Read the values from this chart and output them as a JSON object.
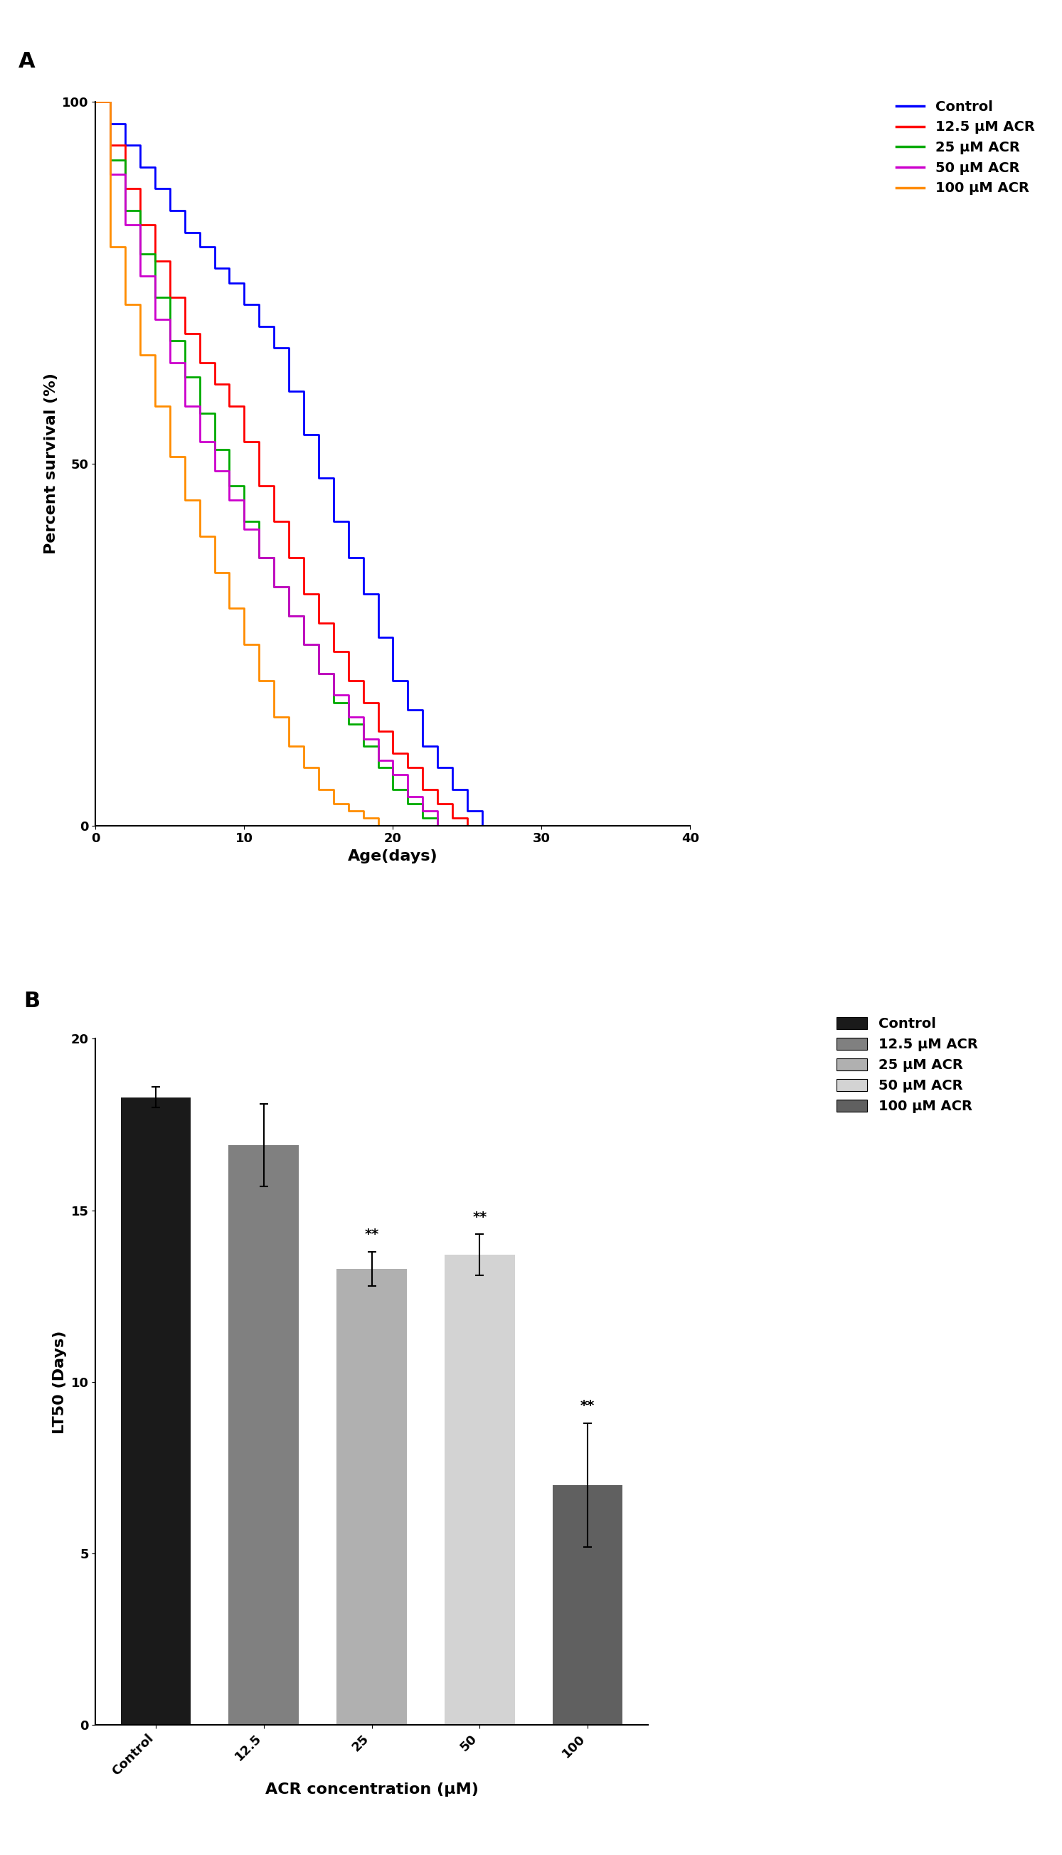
{
  "panel_a_label": "A",
  "panel_b_label": "B",
  "survival_xlabel": "Age(days)",
  "survival_ylabel": "Percent survival (%)",
  "survival_xlim": [
    0,
    40
  ],
  "survival_ylim": [
    0,
    100
  ],
  "survival_xticks": [
    0,
    10,
    20,
    30,
    40
  ],
  "survival_yticks": [
    0,
    50,
    100
  ],
  "survival_lines": [
    {
      "label": "Control",
      "color": "#0000FF",
      "x": [
        0,
        1,
        1,
        2,
        2,
        3,
        3,
        4,
        4,
        5,
        5,
        6,
        6,
        7,
        7,
        8,
        8,
        9,
        9,
        10,
        10,
        11,
        11,
        12,
        12,
        13,
        13,
        14,
        14,
        15,
        15,
        16,
        16,
        17,
        17,
        18,
        18,
        19,
        19,
        20,
        20,
        21,
        21,
        22,
        22,
        23,
        23,
        24,
        24,
        25,
        25,
        26,
        26,
        27,
        27,
        28,
        28,
        29,
        29,
        40
      ],
      "y": [
        100,
        100,
        97,
        97,
        94,
        94,
        91,
        91,
        88,
        88,
        85,
        85,
        82,
        82,
        80,
        80,
        77,
        77,
        75,
        75,
        72,
        72,
        69,
        69,
        66,
        66,
        60,
        60,
        54,
        54,
        48,
        48,
        42,
        42,
        37,
        37,
        32,
        32,
        26,
        26,
        20,
        20,
        16,
        16,
        11,
        11,
        8,
        8,
        5,
        5,
        2,
        2,
        0,
        0,
        0,
        0,
        0,
        0,
        0,
        0
      ]
    },
    {
      "label": "12.5 μM ACR",
      "color": "#FF0000",
      "x": [
        0,
        1,
        1,
        2,
        2,
        3,
        3,
        4,
        4,
        5,
        5,
        6,
        6,
        7,
        7,
        8,
        8,
        9,
        9,
        10,
        10,
        11,
        11,
        12,
        12,
        13,
        13,
        14,
        14,
        15,
        15,
        16,
        16,
        17,
        17,
        18,
        18,
        19,
        19,
        20,
        20,
        21,
        21,
        22,
        22,
        23,
        23,
        24,
        24,
        25,
        25,
        26,
        26,
        27,
        27,
        40
      ],
      "y": [
        100,
        100,
        94,
        94,
        88,
        88,
        83,
        83,
        78,
        78,
        73,
        73,
        68,
        68,
        64,
        64,
        61,
        61,
        58,
        58,
        53,
        53,
        47,
        47,
        42,
        42,
        37,
        37,
        32,
        32,
        28,
        28,
        24,
        24,
        20,
        20,
        17,
        17,
        13,
        13,
        10,
        10,
        8,
        8,
        5,
        5,
        3,
        3,
        1,
        1,
        0,
        0,
        0,
        0,
        0,
        0
      ]
    },
    {
      "label": "25 μM ACR",
      "color": "#00AA00",
      "x": [
        0,
        1,
        1,
        2,
        2,
        3,
        3,
        4,
        4,
        5,
        5,
        6,
        6,
        7,
        7,
        8,
        8,
        9,
        9,
        10,
        10,
        11,
        11,
        12,
        12,
        13,
        13,
        14,
        14,
        15,
        15,
        16,
        16,
        17,
        17,
        18,
        18,
        19,
        19,
        20,
        20,
        21,
        21,
        22,
        22,
        23,
        23,
        24,
        24,
        25,
        25,
        40
      ],
      "y": [
        100,
        100,
        92,
        92,
        85,
        85,
        79,
        79,
        73,
        73,
        67,
        67,
        62,
        62,
        57,
        57,
        52,
        52,
        47,
        47,
        42,
        42,
        37,
        37,
        33,
        33,
        29,
        29,
        25,
        25,
        21,
        21,
        17,
        17,
        14,
        14,
        11,
        11,
        8,
        8,
        5,
        5,
        3,
        3,
        1,
        1,
        0,
        0,
        0,
        0,
        0,
        0
      ]
    },
    {
      "label": "50 μM ACR",
      "color": "#CC00CC",
      "x": [
        0,
        1,
        1,
        2,
        2,
        3,
        3,
        4,
        4,
        5,
        5,
        6,
        6,
        7,
        7,
        8,
        8,
        9,
        9,
        10,
        10,
        11,
        11,
        12,
        12,
        13,
        13,
        14,
        14,
        15,
        15,
        16,
        16,
        17,
        17,
        18,
        18,
        19,
        19,
        20,
        20,
        21,
        21,
        22,
        22,
        23,
        23,
        24,
        24,
        25,
        25,
        40
      ],
      "y": [
        100,
        100,
        90,
        90,
        83,
        83,
        76,
        76,
        70,
        70,
        64,
        64,
        58,
        58,
        53,
        53,
        49,
        49,
        45,
        45,
        41,
        41,
        37,
        37,
        33,
        33,
        29,
        29,
        25,
        25,
        21,
        21,
        18,
        18,
        15,
        15,
        12,
        12,
        9,
        9,
        7,
        7,
        4,
        4,
        2,
        2,
        0,
        0,
        0,
        0,
        0,
        0
      ]
    },
    {
      "label": "100 μM ACR",
      "color": "#FF8C00",
      "x": [
        0,
        1,
        1,
        2,
        2,
        3,
        3,
        4,
        4,
        5,
        5,
        6,
        6,
        7,
        7,
        8,
        8,
        9,
        9,
        10,
        10,
        11,
        11,
        12,
        12,
        13,
        13,
        14,
        14,
        15,
        15,
        16,
        16,
        17,
        17,
        18,
        18,
        19,
        19,
        20,
        20,
        21,
        21,
        22,
        22,
        23,
        23,
        40
      ],
      "y": [
        100,
        100,
        80,
        80,
        72,
        72,
        65,
        65,
        58,
        58,
        51,
        51,
        45,
        45,
        40,
        40,
        35,
        35,
        30,
        30,
        25,
        25,
        20,
        20,
        15,
        15,
        11,
        11,
        8,
        8,
        5,
        5,
        3,
        3,
        2,
        2,
        1,
        1,
        0,
        0,
        0,
        0,
        0,
        0,
        0,
        0,
        0,
        0
      ]
    }
  ],
  "bar_xlabel": "ACR concentration (μM)",
  "bar_ylabel": "LT50 (Days)",
  "bar_ylim": [
    0,
    20
  ],
  "bar_yticks": [
    0,
    5,
    10,
    15,
    20
  ],
  "bar_categories": [
    "Control",
    "12.5",
    "25",
    "50",
    "100"
  ],
  "bar_values": [
    18.3,
    16.9,
    13.3,
    13.7,
    7.0
  ],
  "bar_errors": [
    0.3,
    1.2,
    0.5,
    0.6,
    1.8
  ],
  "bar_colors": [
    "#1a1a1a",
    "#808080",
    "#b0b0b0",
    "#d3d3d3",
    "#606060"
  ],
  "bar_sig": [
    "",
    "",
    "**",
    "**",
    "**"
  ],
  "legend_b_labels": [
    "Control",
    "12.5 μM ACR",
    "25 μM ACR",
    "50 μM ACR",
    "100 μM ACR"
  ],
  "legend_b_colors": [
    "#1a1a1a",
    "#808080",
    "#b0b0b0",
    "#d3d3d3",
    "#606060"
  ],
  "background_color": "#ffffff",
  "line_width": 2.0,
  "font_size": 14,
  "label_font_size": 16,
  "tick_font_size": 13
}
